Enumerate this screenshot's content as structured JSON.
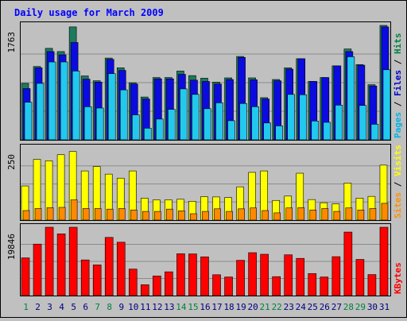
{
  "chart_data": [
    {
      "type": "bar",
      "title": "Daily usage for March 2009",
      "categories": [
        "1",
        "2",
        "3",
        "4",
        "5",
        "6",
        "7",
        "8",
        "9",
        "10",
        "11",
        "12",
        "13",
        "14",
        "15",
        "16",
        "17",
        "18",
        "19",
        "20",
        "21",
        "22",
        "23",
        "24",
        "25",
        "26",
        "27",
        "28",
        "29",
        "30",
        "31"
      ],
      "weekend_days": [
        "1",
        "7",
        "8",
        "14",
        "15",
        "21",
        "22",
        "28",
        "29"
      ],
      "ymax_label": "1763",
      "ylim": [
        0,
        1763
      ],
      "legend": [
        {
          "text": "Pages",
          "color": "#00b4e6"
        },
        {
          "text": "Files",
          "color": "#0000cc"
        },
        {
          "text": "Hits",
          "color": "#008040"
        }
      ],
      "series": [
        {
          "name": "Hits",
          "color": "#1e7a5c",
          "values": [
            870,
            1130,
            1410,
            1360,
            1740,
            985,
            910,
            1260,
            1110,
            880,
            660,
            960,
            960,
            1060,
            990,
            950,
            890,
            955,
            1285,
            955,
            650,
            930,
            1110,
            1250,
            900,
            960,
            1140,
            1400,
            1160,
            850,
            1763
          ]
        },
        {
          "name": "Files",
          "color": "#0b0be0",
          "values": [
            790,
            1110,
            1360,
            1310,
            1500,
            935,
            890,
            1240,
            1070,
            860,
            630,
            940,
            940,
            1010,
            920,
            900,
            860,
            930,
            1270,
            925,
            630,
            910,
            1090,
            1250,
            900,
            960,
            1140,
            1360,
            1150,
            830,
            1740
          ]
        },
        {
          "name": "Pages",
          "color": "#22c8ee",
          "values": [
            580,
            870,
            1200,
            1200,
            1060,
            510,
            490,
            1020,
            770,
            385,
            180,
            320,
            470,
            785,
            700,
            480,
            570,
            295,
            560,
            510,
            260,
            215,
            700,
            695,
            290,
            270,
            535,
            1280,
            530,
            240,
            1080
          ]
        }
      ]
    },
    {
      "type": "bar",
      "ymax_label": "250",
      "ylim": [
        0,
        250
      ],
      "legend": [
        {
          "text": "Sites",
          "color": "#ff9000"
        },
        {
          "text": "Visits",
          "color": "#ffff00"
        }
      ],
      "series": [
        {
          "name": "Visits",
          "color": "#ffff00",
          "values": [
            118,
            210,
            205,
            226,
            237,
            170,
            185,
            159,
            145,
            170,
            76,
            70,
            70,
            72,
            65,
            81,
            80,
            78,
            115,
            165,
            170,
            68,
            83,
            162,
            71,
            60,
            56,
            128,
            76,
            82,
            190
          ]
        },
        {
          "name": "Sites",
          "color": "#ff8a00",
          "values": [
            33,
            40,
            43,
            44,
            70,
            40,
            40,
            38,
            40,
            35,
            30,
            30,
            38,
            32,
            22,
            30,
            39,
            30,
            39,
            42,
            33,
            25,
            42,
            43,
            35,
            40,
            30,
            42,
            35,
            40,
            58
          ]
        }
      ]
    },
    {
      "type": "bar",
      "ymax_label": "19846",
      "ylim": [
        0,
        19846
      ],
      "legend": [
        {
          "text": "KBytes",
          "color": "#ff0000"
        }
      ],
      "series": [
        {
          "name": "KBytes",
          "color": "#ff0000",
          "values": [
            10950,
            14950,
            19846,
            17930,
            19846,
            10350,
            8900,
            16900,
            15500,
            7700,
            3150,
            5700,
            6900,
            12150,
            12100,
            11250,
            6050,
            5400,
            10250,
            12460,
            12000,
            5500,
            11840,
            10800,
            6400,
            5400,
            11300,
            18450,
            10500,
            6100,
            19846
          ]
        }
      ]
    }
  ]
}
